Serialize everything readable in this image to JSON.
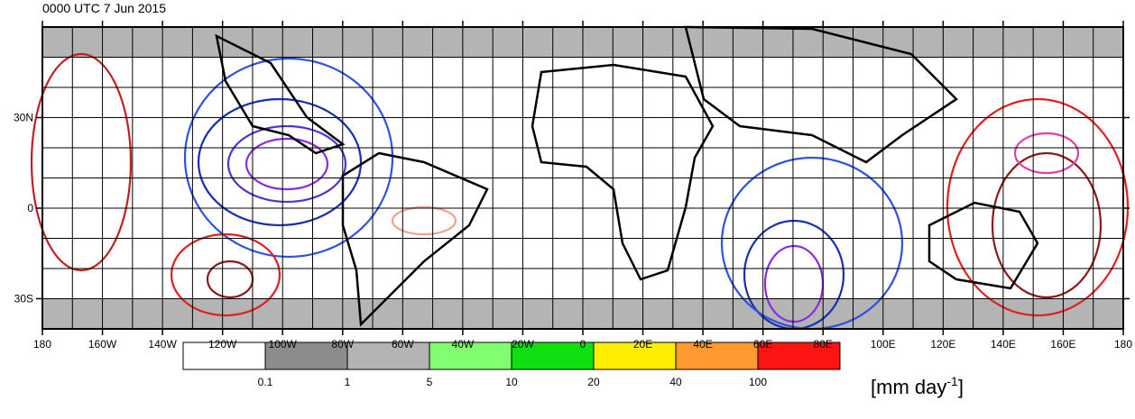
{
  "title": "0000 UTC 7 Jun 2015",
  "map": {
    "lon_labels": [
      "180",
      "160W",
      "140W",
      "120W",
      "100W",
      "80W",
      "60W",
      "40W",
      "20W",
      "0",
      "20E",
      "40E",
      "60E",
      "80E",
      "100E",
      "120E",
      "140E",
      "160E",
      "180"
    ],
    "lat_labels": [
      "30N",
      "0",
      "30S"
    ]
  },
  "colorbar": {
    "colors": [
      "#ffffff",
      "#8c8c8c",
      "#b4b4b4",
      "#80ff70",
      "#10e010",
      "#ffee00",
      "#ff9a30",
      "#ff1414"
    ],
    "labels": [
      "0.1",
      "1",
      "5",
      "10",
      "20",
      "40",
      "100"
    ],
    "unit": "[mm day",
    "unit_exponent": "-1",
    "unit_close": "]"
  }
}
